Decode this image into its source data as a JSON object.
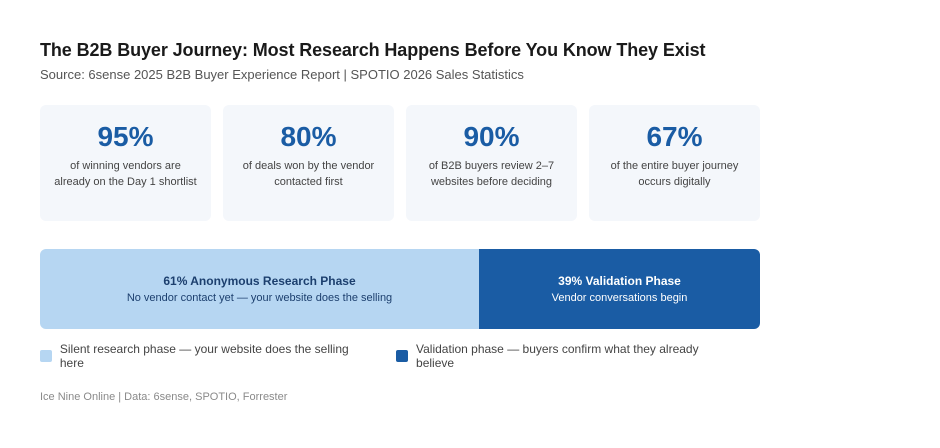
{
  "header": {
    "title": "The B2B Buyer Journey: Most Research Happens Before You Know They Exist",
    "subtitle": "Source: 6sense 2025 B2B Buyer Experience Report | SPOTIO 2026 Sales Statistics"
  },
  "stats": [
    {
      "value": "95%",
      "description": "of winning vendors are already on the Day 1 shortlist"
    },
    {
      "value": "80%",
      "description": "of deals won by the vendor contacted first"
    },
    {
      "value": "90%",
      "description": "of B2B buyers review 2–7 websites before deciding"
    },
    {
      "value": "67%",
      "description": "of the entire buyer journey occurs digitally"
    }
  ],
  "legend": [
    {
      "label": "Silent research phase — your website does the selling here",
      "color": "#b6d6f2"
    },
    {
      "label": "Validation phase — buyers confirm what they already believe",
      "color": "#1a5ca4"
    }
  ],
  "footer": "Ice Nine Online | Data: 6sense, SPOTIO, Forrester",
  "colors": {
    "accent": "#1a5ca4",
    "research": "#b6d6f2",
    "validation": "#1a5ca4",
    "card_bg": "#f4f7fb"
  },
  "chart_data": {
    "type": "bar",
    "orientation": "horizontal-stacked",
    "categories": [
      "Anonymous Research Phase",
      "Validation Phase"
    ],
    "values": [
      61,
      39
    ],
    "unit": "%",
    "segments": [
      {
        "name": "Anonymous Research Phase",
        "value": 61,
        "label": "61% Anonymous Research Phase",
        "sublabel": "No vendor contact yet — your website does the selling",
        "color": "#b6d6f2"
      },
      {
        "name": "Validation Phase",
        "value": 39,
        "label": "39% Validation Phase",
        "sublabel": "Vendor conversations begin",
        "color": "#1a5ca4"
      }
    ],
    "title": "The B2B Buyer Journey: Most Research Happens Before You Know They Exist",
    "legend_position": "bottom-left",
    "grid": false
  }
}
